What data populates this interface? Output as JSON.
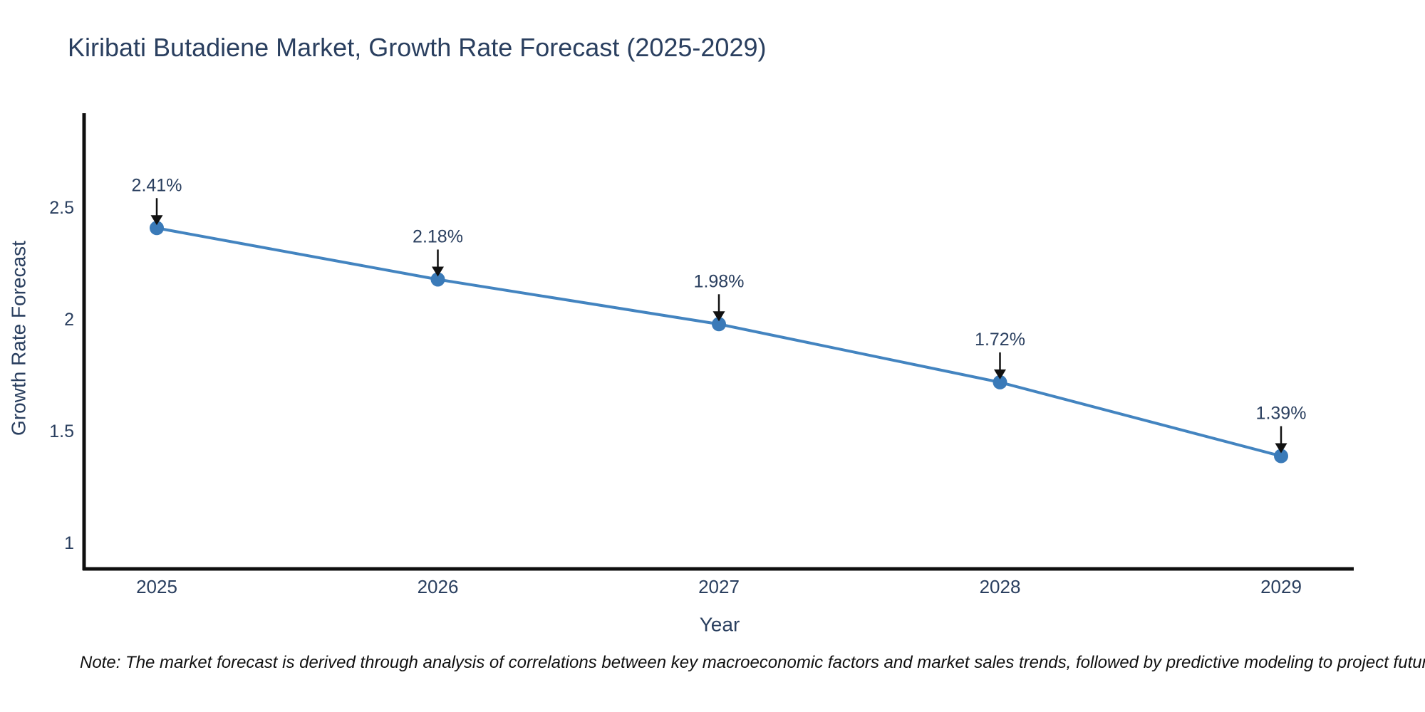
{
  "title": "Kiribati Butadiene Market, Growth Rate Forecast (2025-2029)",
  "note": "Note: The market forecast is derived through analysis of correlations between key macroeconomic factors and market sales trends, followed by predictive modeling to project future sales.",
  "chart_data": {
    "type": "line",
    "title": "Kiribati Butadiene Market, Growth Rate Forecast (2025-2029)",
    "xlabel": "Year",
    "ylabel": "Growth Rate Forecast",
    "categories": [
      "2025",
      "2026",
      "2027",
      "2028",
      "2029"
    ],
    "values": [
      2.41,
      2.18,
      1.98,
      1.72,
      1.39
    ],
    "point_labels": [
      "2.41%",
      "2.18%",
      "1.98%",
      "1.72%",
      "1.39%"
    ],
    "yticks": [
      "1",
      "1.5",
      "2",
      "2.5"
    ],
    "ytick_values": [
      1,
      1.5,
      2,
      2.5
    ],
    "ylim": [
      0.89,
      2.92
    ],
    "grid": false,
    "legend": false,
    "annotations_have_arrows": true,
    "colors": {
      "line": "#4384c0",
      "marker": "#3a7ab8",
      "axis": "#0f0f0f",
      "font": "#2a3f5f",
      "arrow": "#111111"
    }
  }
}
